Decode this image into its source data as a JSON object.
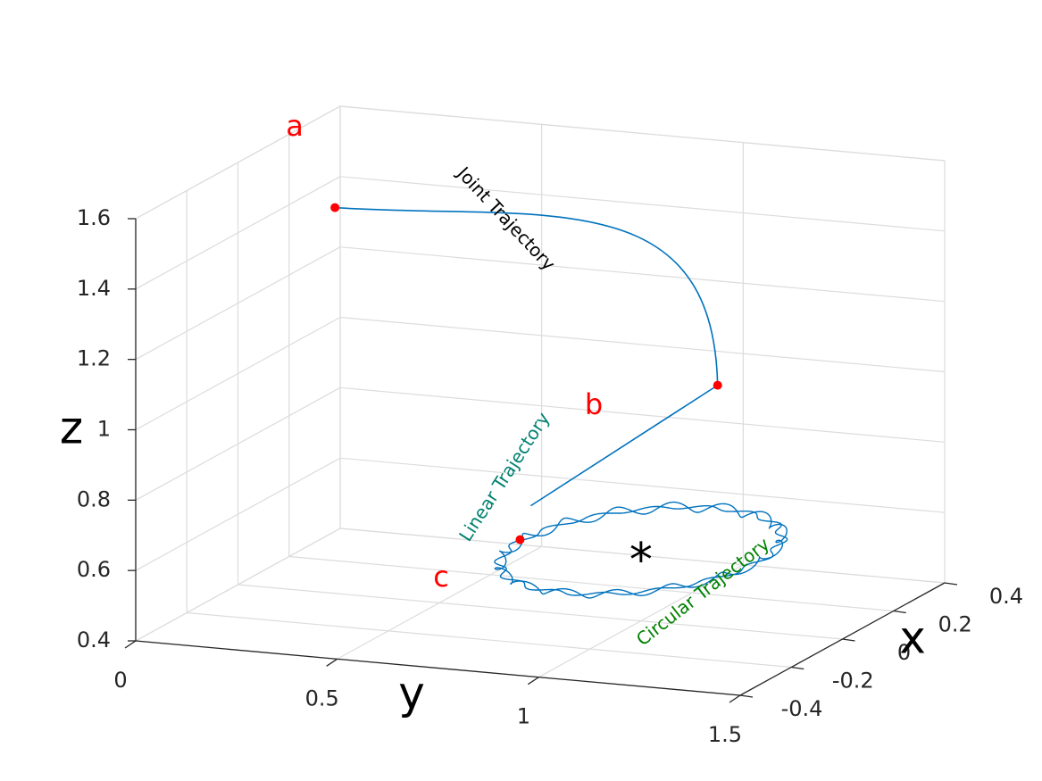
{
  "chart_data": {
    "type": "line3d",
    "title": "",
    "xlabel": "x",
    "ylabel": "y",
    "zlabel": "z",
    "xlim": [
      -0.4,
      0.4
    ],
    "ylim": [
      0,
      1.5
    ],
    "zlim": [
      0.4,
      1.6
    ],
    "x_ticks": [
      -0.4,
      -0.2,
      0,
      0.2,
      0.4
    ],
    "x_tick_labels": [
      "-0.4",
      "-0.2",
      "0",
      "0.2",
      "0.4"
    ],
    "y_ticks": [
      0,
      0.5,
      1,
      1.5
    ],
    "y_tick_labels": [
      "0",
      "0.5",
      "1",
      "1.5"
    ],
    "z_ticks": [
      0.4,
      0.6,
      0.8,
      1,
      1.2,
      1.4,
      1.6
    ],
    "z_tick_labels": [
      "0.4",
      "0.6",
      "0.8",
      "1",
      "1.2",
      "1.4",
      "1.6"
    ],
    "grid": true,
    "points": [
      {
        "name": "a",
        "x": -0.33,
        "y": 0.45,
        "z": 1.65
      },
      {
        "name": "b",
        "x": 0.3,
        "y": 1.0,
        "z": 0.95
      },
      {
        "name": "c",
        "x": 0.0,
        "y": 0.7,
        "z": 0.6
      }
    ],
    "center_marker": {
      "symbol": "*",
      "x": 0.0,
      "y": 1.0,
      "z": 0.6
    },
    "circle": {
      "center_x": 0.0,
      "center_y": 1.0,
      "z": 0.6,
      "radius": 0.3,
      "ripple_amplitude": 0.012,
      "ripple_count": 16
    },
    "annotations": [
      {
        "text": "Joint Trajectory",
        "color": "#000000"
      },
      {
        "text": "Linear Trajectory",
        "color": "#008070"
      },
      {
        "text": "Circular Trajectory",
        "color": "#008000"
      }
    ],
    "colors": {
      "trajectory": "#0072BD",
      "points": "#ff0000"
    }
  }
}
